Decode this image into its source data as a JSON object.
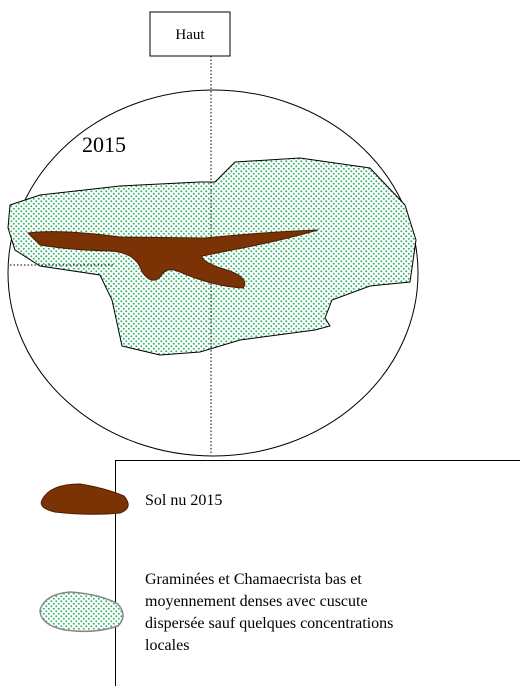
{
  "header": {
    "title": "Haut"
  },
  "diagram": {
    "year": "2015"
  },
  "legend": {
    "items": [
      {
        "label_lines": [
          "Sol nu 2015"
        ]
      },
      {
        "label_lines": [
          "Graminées et Chamaecrista bas  et",
          "moyennement denses avec cuscute",
          "dispersée sauf quelques concentrations",
          "locales"
        ]
      }
    ]
  }
}
